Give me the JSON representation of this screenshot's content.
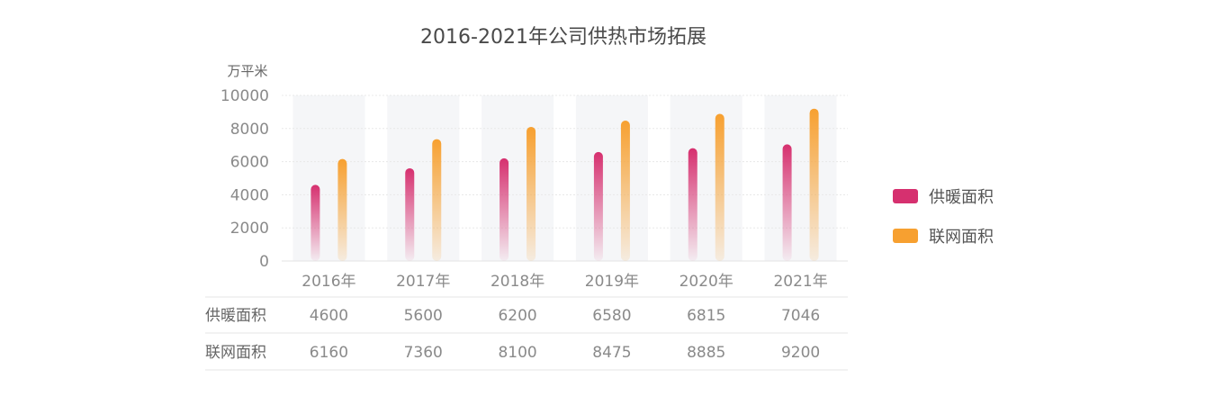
{
  "chart_data": {
    "type": "bar",
    "title": "2016-2021年公司供热市场拓展",
    "unit": "万平米",
    "categories": [
      "2016年",
      "2017年",
      "2018年",
      "2019年",
      "2020年",
      "2021年"
    ],
    "ylim": [
      0,
      10000
    ],
    "yticks": [
      0,
      2000,
      4000,
      6000,
      8000,
      10000
    ],
    "grid": true,
    "legend_position": "right",
    "series": [
      {
        "name": "供暖面积",
        "values": [
          4600,
          5600,
          6200,
          6580,
          6815,
          7046
        ],
        "color": "#d6306f"
      },
      {
        "name": "联网面积",
        "values": [
          6160,
          7360,
          8100,
          8475,
          8885,
          9200
        ],
        "color": "#f7a030"
      }
    ],
    "table": {
      "rows": [
        {
          "label": "供暖面积",
          "cells": [
            "4600",
            "5600",
            "6200",
            "6580",
            "6815",
            "7046"
          ]
        },
        {
          "label": "联网面积",
          "cells": [
            "6160",
            "7360",
            "8100",
            "8475",
            "8885",
            "9200"
          ]
        }
      ]
    }
  }
}
